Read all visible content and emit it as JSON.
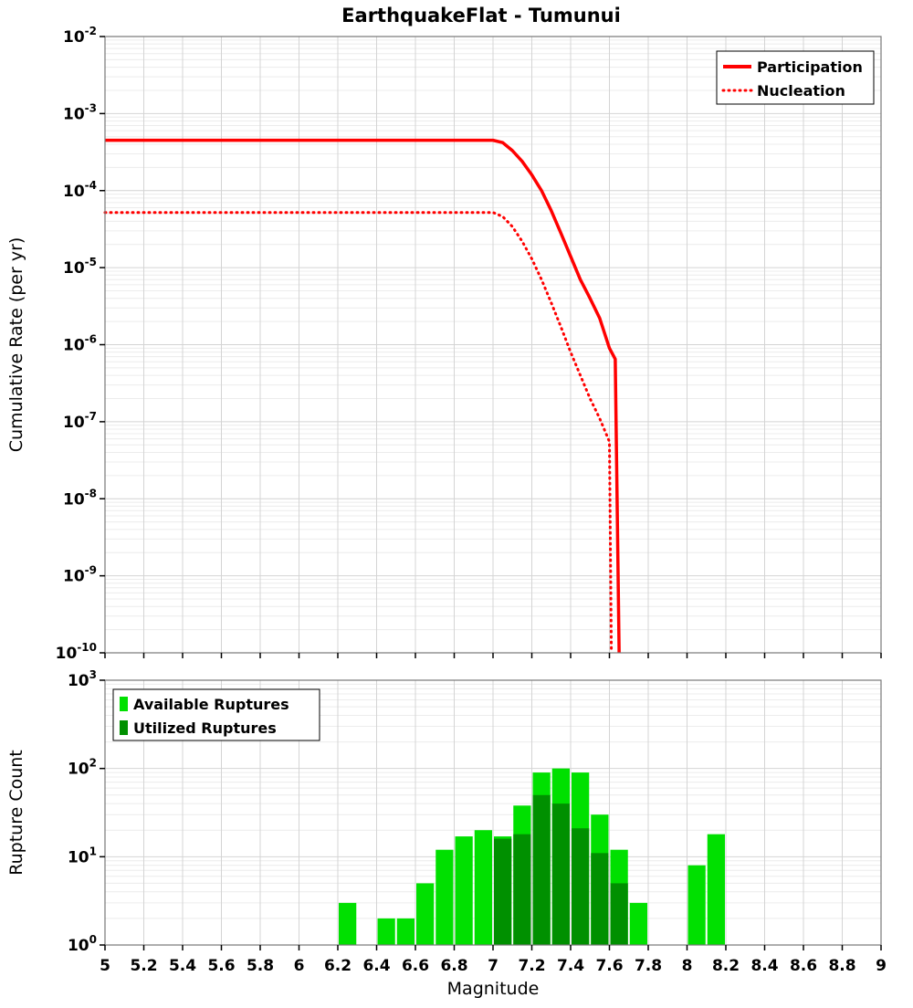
{
  "page": {
    "title": "EarthquakeFlat - Tumunui"
  },
  "colors": {
    "line": "#ff0000",
    "available": "#00e000",
    "utilized": "#009000",
    "grid_major": "#d4d4d4",
    "grid_minor": "#ececec",
    "axis": "#000000",
    "border": "#777777"
  },
  "chart_data": [
    {
      "type": "line",
      "title": "EarthquakeFlat - Tumunui",
      "ylabel": "Cumulative Rate (per yr)",
      "y_log_range": [
        -10,
        -2
      ],
      "x_range": [
        5,
        9
      ],
      "x_tick_step": 0.2,
      "grid": true,
      "legend_position": "top-right",
      "legend": [
        "Participation",
        "Nucleation"
      ],
      "series": [
        {
          "name": "Participation",
          "style": "solid",
          "color": "#ff0000",
          "points": [
            [
              5.0,
              0.00045
            ],
            [
              7.0,
              0.00045
            ],
            [
              7.05,
              0.00042
            ],
            [
              7.1,
              0.00033
            ],
            [
              7.15,
              0.00024
            ],
            [
              7.2,
              0.00016
            ],
            [
              7.25,
              0.0001
            ],
            [
              7.3,
              5.5e-05
            ],
            [
              7.35,
              2.8e-05
            ],
            [
              7.4,
              1.4e-05
            ],
            [
              7.45,
              7e-06
            ],
            [
              7.5,
              4e-06
            ],
            [
              7.55,
              2.2e-06
            ],
            [
              7.6,
              9e-07
            ],
            [
              7.63,
              6.5e-07
            ],
            [
              7.65,
              1e-10
            ]
          ]
        },
        {
          "name": "Nucleation",
          "style": "dotted",
          "color": "#ff0000",
          "points": [
            [
              5.0,
              5.2e-05
            ],
            [
              7.0,
              5.2e-05
            ],
            [
              7.05,
              4.6e-05
            ],
            [
              7.1,
              3.4e-05
            ],
            [
              7.15,
              2.2e-05
            ],
            [
              7.2,
              1.3e-05
            ],
            [
              7.25,
              7e-06
            ],
            [
              7.3,
              3.5e-06
            ],
            [
              7.35,
              1.7e-06
            ],
            [
              7.4,
              8e-07
            ],
            [
              7.45,
              4e-07
            ],
            [
              7.5,
              2e-07
            ],
            [
              7.55,
              1.1e-07
            ],
            [
              7.6,
              5.5e-08
            ],
            [
              7.61,
              1e-10
            ]
          ]
        }
      ]
    },
    {
      "type": "bar",
      "ylabel": "Rupture Count",
      "xlabel": "Magnitude",
      "y_log_range": [
        0,
        3
      ],
      "x_range": [
        5,
        9
      ],
      "x_tick_step": 0.2,
      "bin_width": 0.1,
      "grid": true,
      "legend_position": "top-left",
      "legend": [
        "Available Ruptures",
        "Utilized Ruptures"
      ],
      "series": [
        {
          "name": "Available Ruptures",
          "color": "#00e000"
        },
        {
          "name": "Utilized Ruptures",
          "color": "#009000"
        }
      ],
      "bars": [
        {
          "m": 6.2,
          "available": 3,
          "utilized": 0
        },
        {
          "m": 6.4,
          "available": 2,
          "utilized": 0
        },
        {
          "m": 6.5,
          "available": 2,
          "utilized": 0
        },
        {
          "m": 6.6,
          "available": 5,
          "utilized": 0
        },
        {
          "m": 6.7,
          "available": 12,
          "utilized": 0
        },
        {
          "m": 6.8,
          "available": 17,
          "utilized": 0
        },
        {
          "m": 6.9,
          "available": 20,
          "utilized": 0
        },
        {
          "m": 7.0,
          "available": 17,
          "utilized": 16
        },
        {
          "m": 7.1,
          "available": 38,
          "utilized": 18
        },
        {
          "m": 7.2,
          "available": 90,
          "utilized": 50
        },
        {
          "m": 7.3,
          "available": 100,
          "utilized": 40
        },
        {
          "m": 7.4,
          "available": 90,
          "utilized": 21
        },
        {
          "m": 7.5,
          "available": 30,
          "utilized": 11
        },
        {
          "m": 7.6,
          "available": 12,
          "utilized": 5
        },
        {
          "m": 7.7,
          "available": 3,
          "utilized": 0
        },
        {
          "m": 8.0,
          "available": 8,
          "utilized": 0
        },
        {
          "m": 8.1,
          "available": 18,
          "utilized": 0
        }
      ]
    }
  ]
}
